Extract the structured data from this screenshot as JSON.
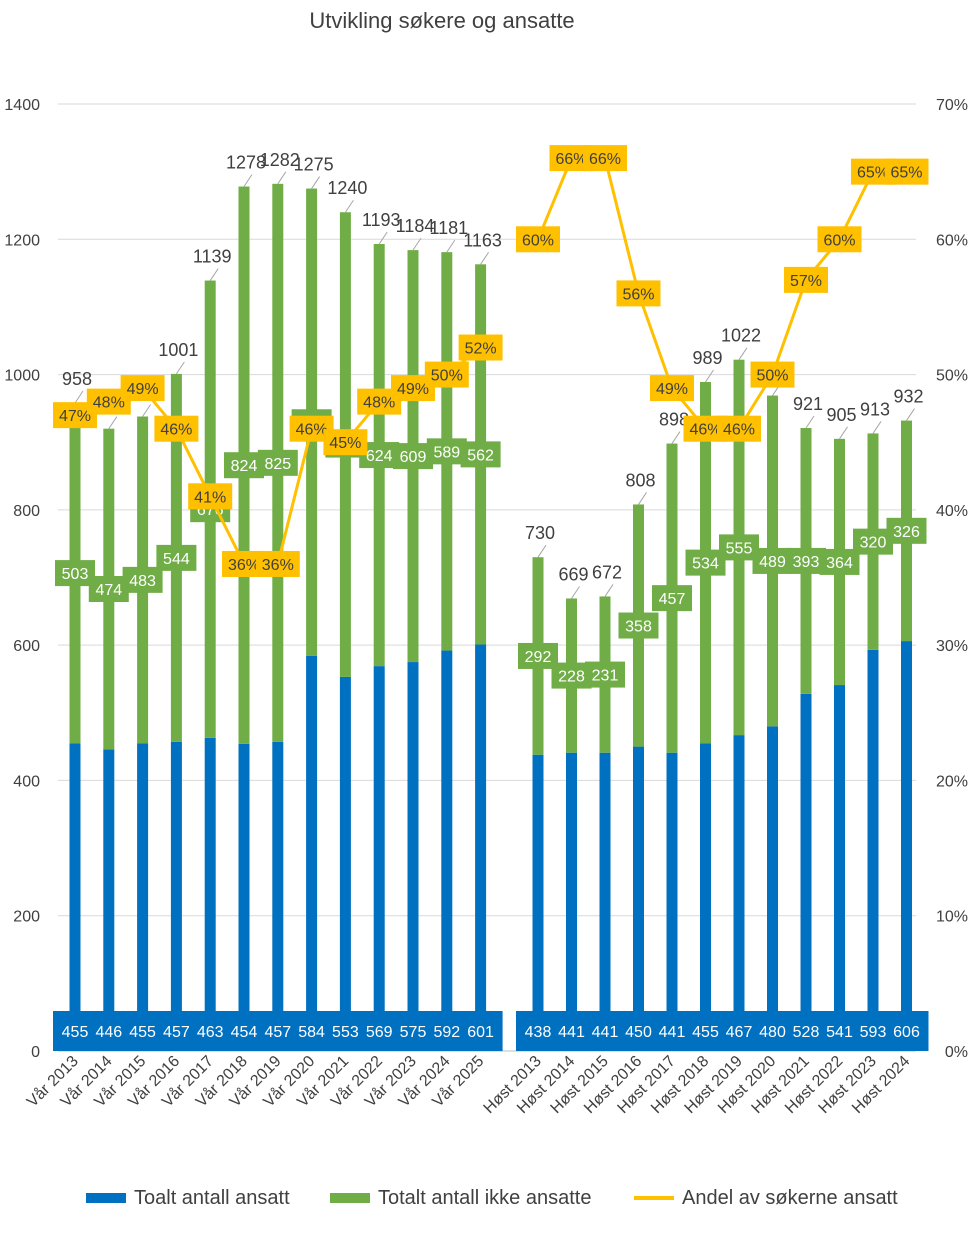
{
  "colors": {
    "employed": "#0070C0",
    "not_employed": "#70AD47",
    "share_line": "#FFC000",
    "grid": "#D9D9D9",
    "text": "#404040"
  },
  "chart_data": {
    "type": "bar",
    "stacked": true,
    "title": "Utvikling søkere og ansatte",
    "categories": [
      "Vår 2013",
      "Vår 2014",
      "Vår 2015",
      "Vår 2016",
      "Vår 2017",
      "Vår 2018",
      "Vår 2019",
      "Vår 2020",
      "Vår 2021",
      "Vår 2022",
      "Vår 2023",
      "Vår 2024",
      "Vår 2025",
      "Høst 2013",
      "Høst 2014",
      "Høst 2015",
      "Høst 2016",
      "Høst 2017",
      "Høst 2018",
      "Høst 2019",
      "Høst 2020",
      "Høst 2021",
      "Høst 2022",
      "Høst 2023",
      "Høst 2024"
    ],
    "groups": [
      {
        "name": "Vår",
        "categories": [
          "Vår 2013",
          "Vår 2014",
          "Vår 2015",
          "Vår 2016",
          "Vår 2017",
          "Vår 2018",
          "Vår 2019",
          "Vår 2020",
          "Vår 2021",
          "Vår 2022",
          "Vår 2023",
          "Vår 2024",
          "Vår 2025"
        ]
      },
      {
        "name": "Høst",
        "categories": [
          "Høst 2013",
          "Høst 2014",
          "Høst 2015",
          "Høst 2016",
          "Høst 2017",
          "Høst 2018",
          "Høst 2019",
          "Høst 2020",
          "Høst 2021",
          "Høst 2022",
          "Høst 2023",
          "Høst 2024"
        ]
      }
    ],
    "series": [
      {
        "name": "Toalt antall ansatt",
        "type": "bar",
        "axis": "left",
        "values": [
          455,
          446,
          455,
          457,
          463,
          454,
          457,
          584,
          553,
          569,
          575,
          592,
          601,
          438,
          441,
          441,
          450,
          441,
          455,
          467,
          480,
          528,
          541,
          593,
          606
        ]
      },
      {
        "name": "Totalt antall ikke ansatte",
        "type": "bar",
        "axis": "left",
        "values": [
          503,
          474,
          483,
          544,
          676,
          824,
          825,
          691,
          687,
          624,
          609,
          589,
          562,
          292,
          228,
          231,
          358,
          457,
          534,
          555,
          489,
          393,
          364,
          320,
          326
        ]
      },
      {
        "name": "Andel av søkerne ansatt",
        "type": "line",
        "axis": "right",
        "values": [
          0.47,
          0.48,
          0.49,
          0.46,
          0.41,
          0.36,
          0.36,
          0.46,
          0.45,
          0.48,
          0.49,
          0.5,
          0.52,
          0.6,
          0.66,
          0.66,
          0.56,
          0.49,
          0.46,
          0.46,
          0.5,
          0.57,
          0.6,
          0.65,
          0.65
        ]
      }
    ],
    "totals": [
      958,
      920,
      938,
      1001,
      1139,
      1278,
      1282,
      1275,
      1240,
      1193,
      1184,
      1181,
      1163,
      730,
      669,
      672,
      808,
      898,
      989,
      1022,
      969,
      921,
      905,
      913,
      932
    ],
    "pct_labels": [
      "47%",
      "48%",
      "49%",
      "46%",
      "41%",
      "36%",
      "36%",
      "46%",
      "45%",
      "48%",
      "49%",
      "50%",
      "52%",
      "60%",
      "66%",
      "66%",
      "56%",
      "49%",
      "46%",
      "46%",
      "50%",
      "57%",
      "60%",
      "65%",
      "65%"
    ],
    "ylim": [
      0,
      1400
    ],
    "yticks": [
      0,
      200,
      400,
      600,
      800,
      1000,
      1200,
      1400
    ],
    "y2lim": [
      0,
      0.7
    ],
    "y2ticks": [
      "0%",
      "10%",
      "20%",
      "30%",
      "40%",
      "50%",
      "60%",
      "70%"
    ],
    "grid": true,
    "legend": "bottom"
  }
}
